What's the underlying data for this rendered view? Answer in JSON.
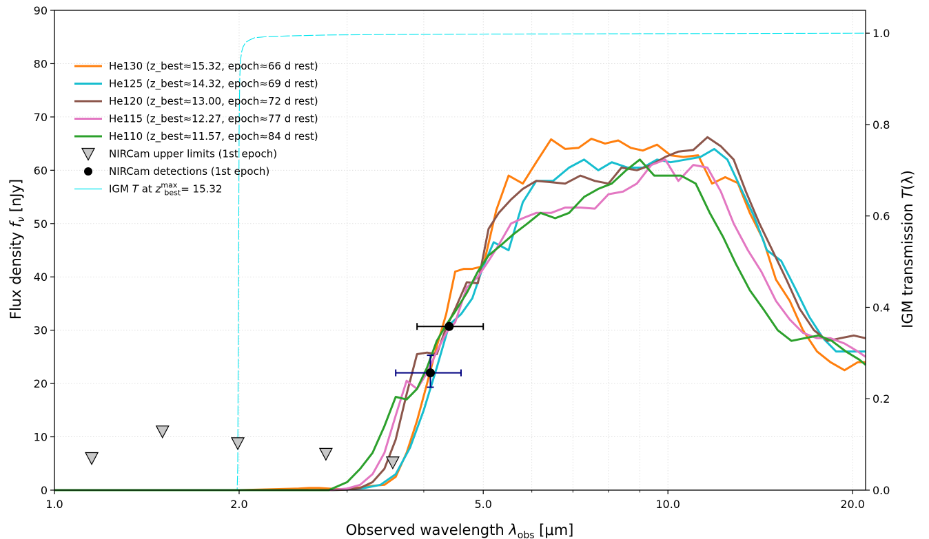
{
  "chart_data": {
    "type": "line",
    "xlabel": "Observed wavelength λobs [μm]",
    "xlabel_main": "Observed wavelength ",
    "xlabel_sym": "λ",
    "xlabel_sub": "obs",
    "xlabel_unit": " [μm]",
    "ylabel": "Flux density fν [nJy]",
    "ylabel_main": "Flux density ",
    "ylabel_sym": "f",
    "ylabel_sub": "ν",
    "ylabel_unit": " [nJy]",
    "y2label": "IGM transmission T(λ)",
    "y2label_main": "IGM transmission ",
    "y2label_sym": "T",
    "y2label_unit": "(λ)",
    "xscale": "log",
    "xlim": [
      1.0,
      21.0
    ],
    "ylim": [
      0,
      90
    ],
    "y2lim": [
      0,
      1.05
    ],
    "grid": true,
    "legend_position": "upper-left",
    "x_ticks": [
      1.0,
      2.0,
      5.0,
      10.0,
      20.0
    ],
    "x_tick_labels": [
      "1.0",
      "2.0",
      "5.0",
      "10.0",
      "20.0"
    ],
    "y_ticks": [
      0,
      10,
      20,
      30,
      40,
      50,
      60,
      70,
      80,
      90
    ],
    "y_tick_labels": [
      "0",
      "10",
      "20",
      "30",
      "40",
      "50",
      "60",
      "70",
      "80",
      "90"
    ],
    "y2_ticks": [
      0.0,
      0.2,
      0.4,
      0.6,
      0.8,
      1.0
    ],
    "y2_tick_labels": [
      "0.0",
      "0.2",
      "0.4",
      "0.6",
      "0.8",
      "1.0"
    ],
    "series": [
      {
        "name": "He130 (z_best≈15.32, epoch≈66 d rest)",
        "color": "#ff7f0e",
        "x": [
          1.0,
          2.0,
          2.5,
          2.6,
          2.7,
          2.8,
          2.9,
          3.0,
          3.15,
          3.3,
          3.45,
          3.6,
          3.75,
          3.9,
          4.05,
          4.2,
          4.35,
          4.5,
          4.65,
          4.8,
          5.0,
          5.25,
          5.5,
          5.8,
          6.1,
          6.45,
          6.8,
          7.15,
          7.5,
          7.9,
          8.3,
          8.7,
          9.1,
          9.6,
          10.1,
          10.6,
          11.2,
          11.8,
          12.4,
          13.0,
          13.6,
          14.3,
          15.0,
          15.8,
          16.6,
          17.5,
          18.4,
          19.4,
          20.4,
          21.0
        ],
        "y": [
          0,
          0,
          0.3,
          0.4,
          0.4,
          0.3,
          0.2,
          0.2,
          0.5,
          0.8,
          1.0,
          2.5,
          7.0,
          13.0,
          20.0,
          27.0,
          33.0,
          41.0,
          41.5,
          41.5,
          42.0,
          52.5,
          59.0,
          57.5,
          61.5,
          65.8,
          64.0,
          64.2,
          65.9,
          65.0,
          65.6,
          64.2,
          63.7,
          64.8,
          62.8,
          62.5,
          62.8,
          57.5,
          58.7,
          57.6,
          52.0,
          47.0,
          39.5,
          35.5,
          30.0,
          26.0,
          24.0,
          22.5,
          24.0,
          24.0
        ]
      },
      {
        "name": "He125 (z_best≈14.32, epoch≈69 d rest)",
        "color": "#17becf",
        "x": [
          1.0,
          2.0,
          2.5,
          2.8,
          3.0,
          3.2,
          3.4,
          3.6,
          3.8,
          4.0,
          4.2,
          4.4,
          4.6,
          4.8,
          5.0,
          5.2,
          5.5,
          5.8,
          6.1,
          6.5,
          6.9,
          7.3,
          7.7,
          8.1,
          8.6,
          9.1,
          9.6,
          10.1,
          10.7,
          11.3,
          11.9,
          12.5,
          13.1,
          13.8,
          14.5,
          15.3,
          16.1,
          17.0,
          17.9,
          18.8,
          19.8,
          21.0
        ],
        "y": [
          0,
          0,
          0,
          0,
          0.1,
          0.4,
          1.0,
          3.0,
          8.0,
          15.0,
          23.0,
          31.0,
          33.0,
          36.0,
          42.0,
          46.5,
          45.0,
          54.0,
          58.0,
          58.0,
          60.5,
          62.0,
          60.0,
          61.5,
          60.5,
          60.5,
          62.0,
          61.5,
          62.0,
          62.5,
          64.0,
          62.0,
          57.0,
          51.5,
          45.0,
          43.0,
          38.0,
          32.5,
          28.5,
          26.0,
          26.0,
          26.0
        ]
      },
      {
        "name": "He120 (z_best≈13.00, epoch≈72 d rest)",
        "color": "#8c564b",
        "x": [
          1.0,
          2.0,
          2.5,
          2.8,
          3.0,
          3.15,
          3.3,
          3.45,
          3.6,
          3.75,
          3.9,
          4.05,
          4.2,
          4.35,
          4.5,
          4.7,
          4.9,
          5.1,
          5.3,
          5.55,
          5.8,
          6.1,
          6.4,
          6.8,
          7.2,
          7.6,
          8.0,
          8.4,
          8.9,
          9.4,
          9.9,
          10.4,
          11.0,
          11.6,
          12.2,
          12.8,
          13.4,
          14.1,
          14.8,
          15.6,
          16.4,
          17.3,
          18.2,
          19.1,
          20.1,
          21.0
        ],
        "y": [
          0,
          0,
          0,
          0,
          0.1,
          0.4,
          1.5,
          4.0,
          9.5,
          18.0,
          25.5,
          25.8,
          25.5,
          30.5,
          34.0,
          39.0,
          38.8,
          49.0,
          52.0,
          54.5,
          56.5,
          58.0,
          57.8,
          57.5,
          59.0,
          58.0,
          57.5,
          60.5,
          60.0,
          61.0,
          62.5,
          63.5,
          63.8,
          66.2,
          64.5,
          62.0,
          56.0,
          50.0,
          45.0,
          39.5,
          34.0,
          30.0,
          28.0,
          28.5,
          29.0,
          28.5
        ]
      },
      {
        "name": "He115 (z_best≈12.27, epoch≈77 d rest)",
        "color": "#e377c2",
        "x": [
          1.0,
          2.0,
          2.5,
          2.8,
          3.0,
          3.15,
          3.3,
          3.45,
          3.6,
          3.75,
          3.9,
          4.05,
          4.2,
          4.35,
          4.5,
          4.7,
          4.9,
          5.1,
          5.3,
          5.55,
          5.8,
          6.1,
          6.45,
          6.8,
          7.2,
          7.6,
          8.0,
          8.45,
          8.9,
          9.4,
          9.9,
          10.4,
          11.0,
          11.6,
          12.2,
          12.8,
          13.5,
          14.2,
          15.0,
          15.8,
          16.6,
          17.5,
          18.4,
          19.4,
          20.4,
          21.0
        ],
        "y": [
          0,
          0,
          0,
          0,
          0.3,
          1.0,
          3.0,
          7.0,
          14.0,
          20.5,
          19.0,
          22.0,
          26.0,
          29.5,
          31.5,
          38.0,
          40.0,
          43.0,
          46.0,
          50.0,
          51.0,
          52.0,
          52.0,
          53.0,
          53.0,
          52.8,
          55.5,
          56.0,
          57.5,
          61.0,
          62.0,
          58.0,
          61.0,
          60.5,
          56.0,
          50.0,
          45.0,
          41.0,
          35.5,
          32.0,
          29.5,
          28.5,
          28.5,
          27.5,
          26.0,
          25.0
        ]
      },
      {
        "name": "He110 (z_best≈11.57, epoch≈84 d rest)",
        "color": "#2ca02c",
        "x": [
          1.0,
          2.0,
          2.5,
          2.8,
          3.0,
          3.15,
          3.3,
          3.45,
          3.6,
          3.75,
          3.9,
          4.05,
          4.2,
          4.35,
          4.5,
          4.7,
          4.9,
          5.1,
          5.35,
          5.6,
          5.9,
          6.2,
          6.55,
          6.9,
          7.3,
          7.7,
          8.1,
          8.55,
          9.0,
          9.5,
          10.0,
          10.5,
          11.1,
          11.7,
          12.3,
          12.9,
          13.6,
          14.3,
          15.1,
          15.9,
          16.7,
          17.6,
          18.5,
          19.5,
          20.5,
          21.0
        ],
        "y": [
          0,
          0,
          0,
          0,
          1.5,
          4.0,
          7.0,
          12.0,
          17.5,
          17.0,
          19.0,
          23.0,
          28.0,
          31.0,
          33.5,
          37.0,
          41.0,
          44.0,
          46.0,
          48.0,
          50.0,
          52.0,
          51.0,
          52.0,
          55.0,
          56.5,
          57.5,
          60.0,
          62.0,
          59.0,
          59.0,
          59.0,
          57.5,
          52.0,
          47.5,
          42.5,
          37.5,
          34.0,
          30.0,
          28.0,
          28.5,
          29.0,
          28.0,
          26.0,
          24.5,
          23.5
        ]
      }
    ],
    "upper_limits": {
      "label": "NIRCam upper limits (1st epoch)",
      "x": [
        1.15,
        1.5,
        1.99,
        2.77,
        3.56
      ],
      "y": [
        6.0,
        11.0,
        8.8,
        6.8,
        5.2
      ]
    },
    "detections": {
      "label": "NIRCam detections (1st epoch)",
      "points": [
        {
          "x": 4.4,
          "y": 30.7,
          "xerr": [
            3.9,
            5.0
          ],
          "yerr": [
            30.7,
            30.7
          ],
          "color": "#000000"
        },
        {
          "x": 4.1,
          "y": 22.0,
          "xerr": [
            3.6,
            4.6
          ],
          "yerr": [
            19.3,
            25.3
          ],
          "color": "#000080"
        }
      ]
    },
    "igm": {
      "label_main": "IGM ",
      "label_sym": "T",
      "label_mid": " at ",
      "label_z": "z",
      "label_sup": "max",
      "label_sub": "best",
      "label_value": "=  15.32",
      "color": "#00e5ee",
      "x": [
        1.0,
        1.98,
        1.985,
        1.99,
        1.995,
        2.0,
        2.005,
        2.01,
        2.02,
        2.03,
        2.05,
        2.08,
        2.12,
        2.2,
        2.4,
        2.8,
        3.5,
        5.0,
        10.0,
        21.0
      ],
      "y": [
        0.0,
        0.0,
        0.0,
        0.05,
        0.45,
        0.8,
        0.9,
        0.94,
        0.96,
        0.97,
        0.98,
        0.985,
        0.99,
        0.992,
        0.994,
        0.996,
        0.997,
        0.998,
        0.999,
        1.0
      ]
    }
  }
}
